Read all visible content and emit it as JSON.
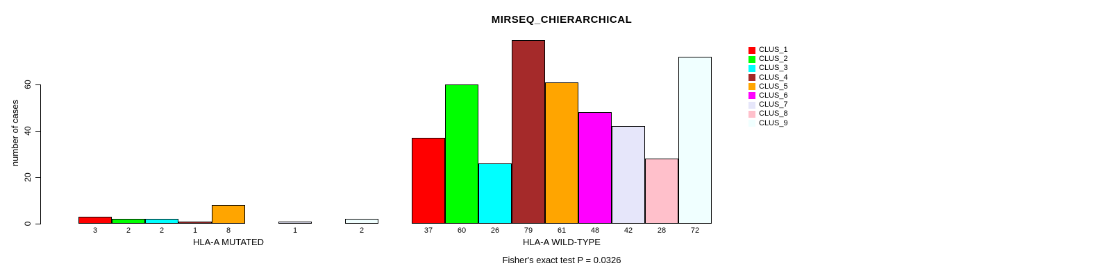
{
  "chart_data": {
    "type": "bar",
    "title": "MIRSEQ_CHIERARCHICAL",
    "ylabel": "number of cases",
    "xlabel": "",
    "ylim": [
      0,
      80
    ],
    "yticks": [
      0,
      20,
      40,
      60
    ],
    "grid": false,
    "legend_position": "top-right",
    "bar_border_color": "#000000",
    "background_color": "#FFFFFF",
    "clusters": [
      {
        "name": "CLUS_1",
        "color": "#FF0000"
      },
      {
        "name": "CLUS_2",
        "color": "#00FF00"
      },
      {
        "name": "CLUS_3",
        "color": "#00FFFF"
      },
      {
        "name": "CLUS_4",
        "color": "#A52A2A"
      },
      {
        "name": "CLUS_5",
        "color": "#FFA500"
      },
      {
        "name": "CLUS_6",
        "color": "#FF00FF"
      },
      {
        "name": "CLUS_7",
        "color": "#E6E6FA"
      },
      {
        "name": "CLUS_8",
        "color": "#FFC0CB"
      },
      {
        "name": "CLUS_9",
        "color": "#F0FFFF"
      }
    ],
    "groups": [
      {
        "label": "HLA-A MUTATED",
        "values": [
          3,
          2,
          2,
          1,
          8,
          0,
          1,
          0,
          2
        ]
      },
      {
        "label": "HLA-A WILD-TYPE",
        "values": [
          37,
          60,
          26,
          79,
          61,
          48,
          42,
          28,
          72
        ]
      }
    ],
    "annotation": "Fisher's exact test P = 0.0326"
  }
}
